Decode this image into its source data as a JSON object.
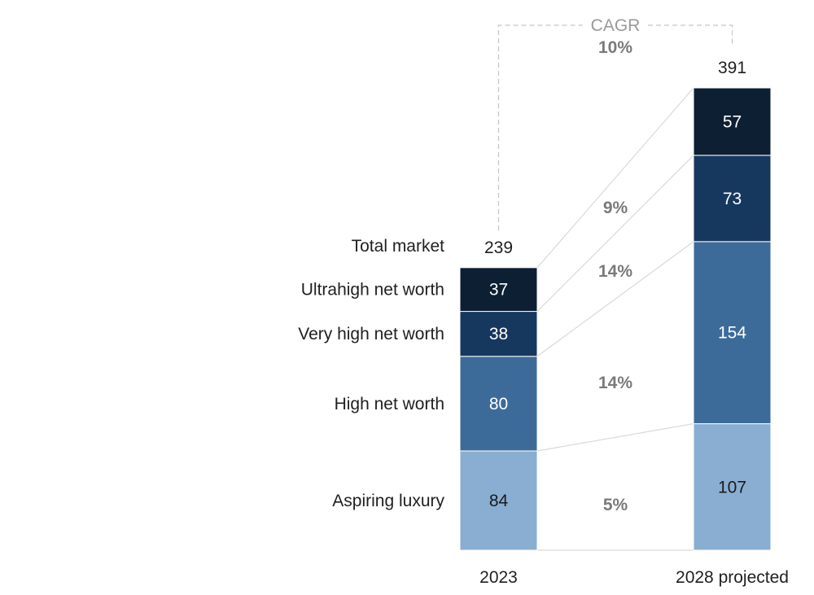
{
  "chart_data": {
    "type": "bar",
    "stacked": true,
    "categories": [
      "2023",
      "2028 projected"
    ],
    "series": [
      {
        "name": "Aspiring luxury",
        "values": [
          84,
          107
        ],
        "color": "#8aaed1",
        "growth": "5%"
      },
      {
        "name": "High net worth",
        "values": [
          80,
          154
        ],
        "color": "#3d6b99",
        "growth": "14%"
      },
      {
        "name": "Very high net worth",
        "values": [
          38,
          73
        ],
        "color": "#17385e",
        "growth": "14%"
      },
      {
        "name": "Ultrahigh net worth",
        "values": [
          37,
          57
        ],
        "color": "#0c1f33",
        "growth": "9%"
      }
    ],
    "totals": [
      239,
      391
    ],
    "total_label": "Total market",
    "cagr": {
      "title": "CAGR",
      "value": "10%"
    },
    "connector_color": "#d9d9d9",
    "cagr_bracket_color": "#c8c8c8",
    "segment_text_color": "#ffffff",
    "light_segment_text_color": "#1a1a1a"
  }
}
